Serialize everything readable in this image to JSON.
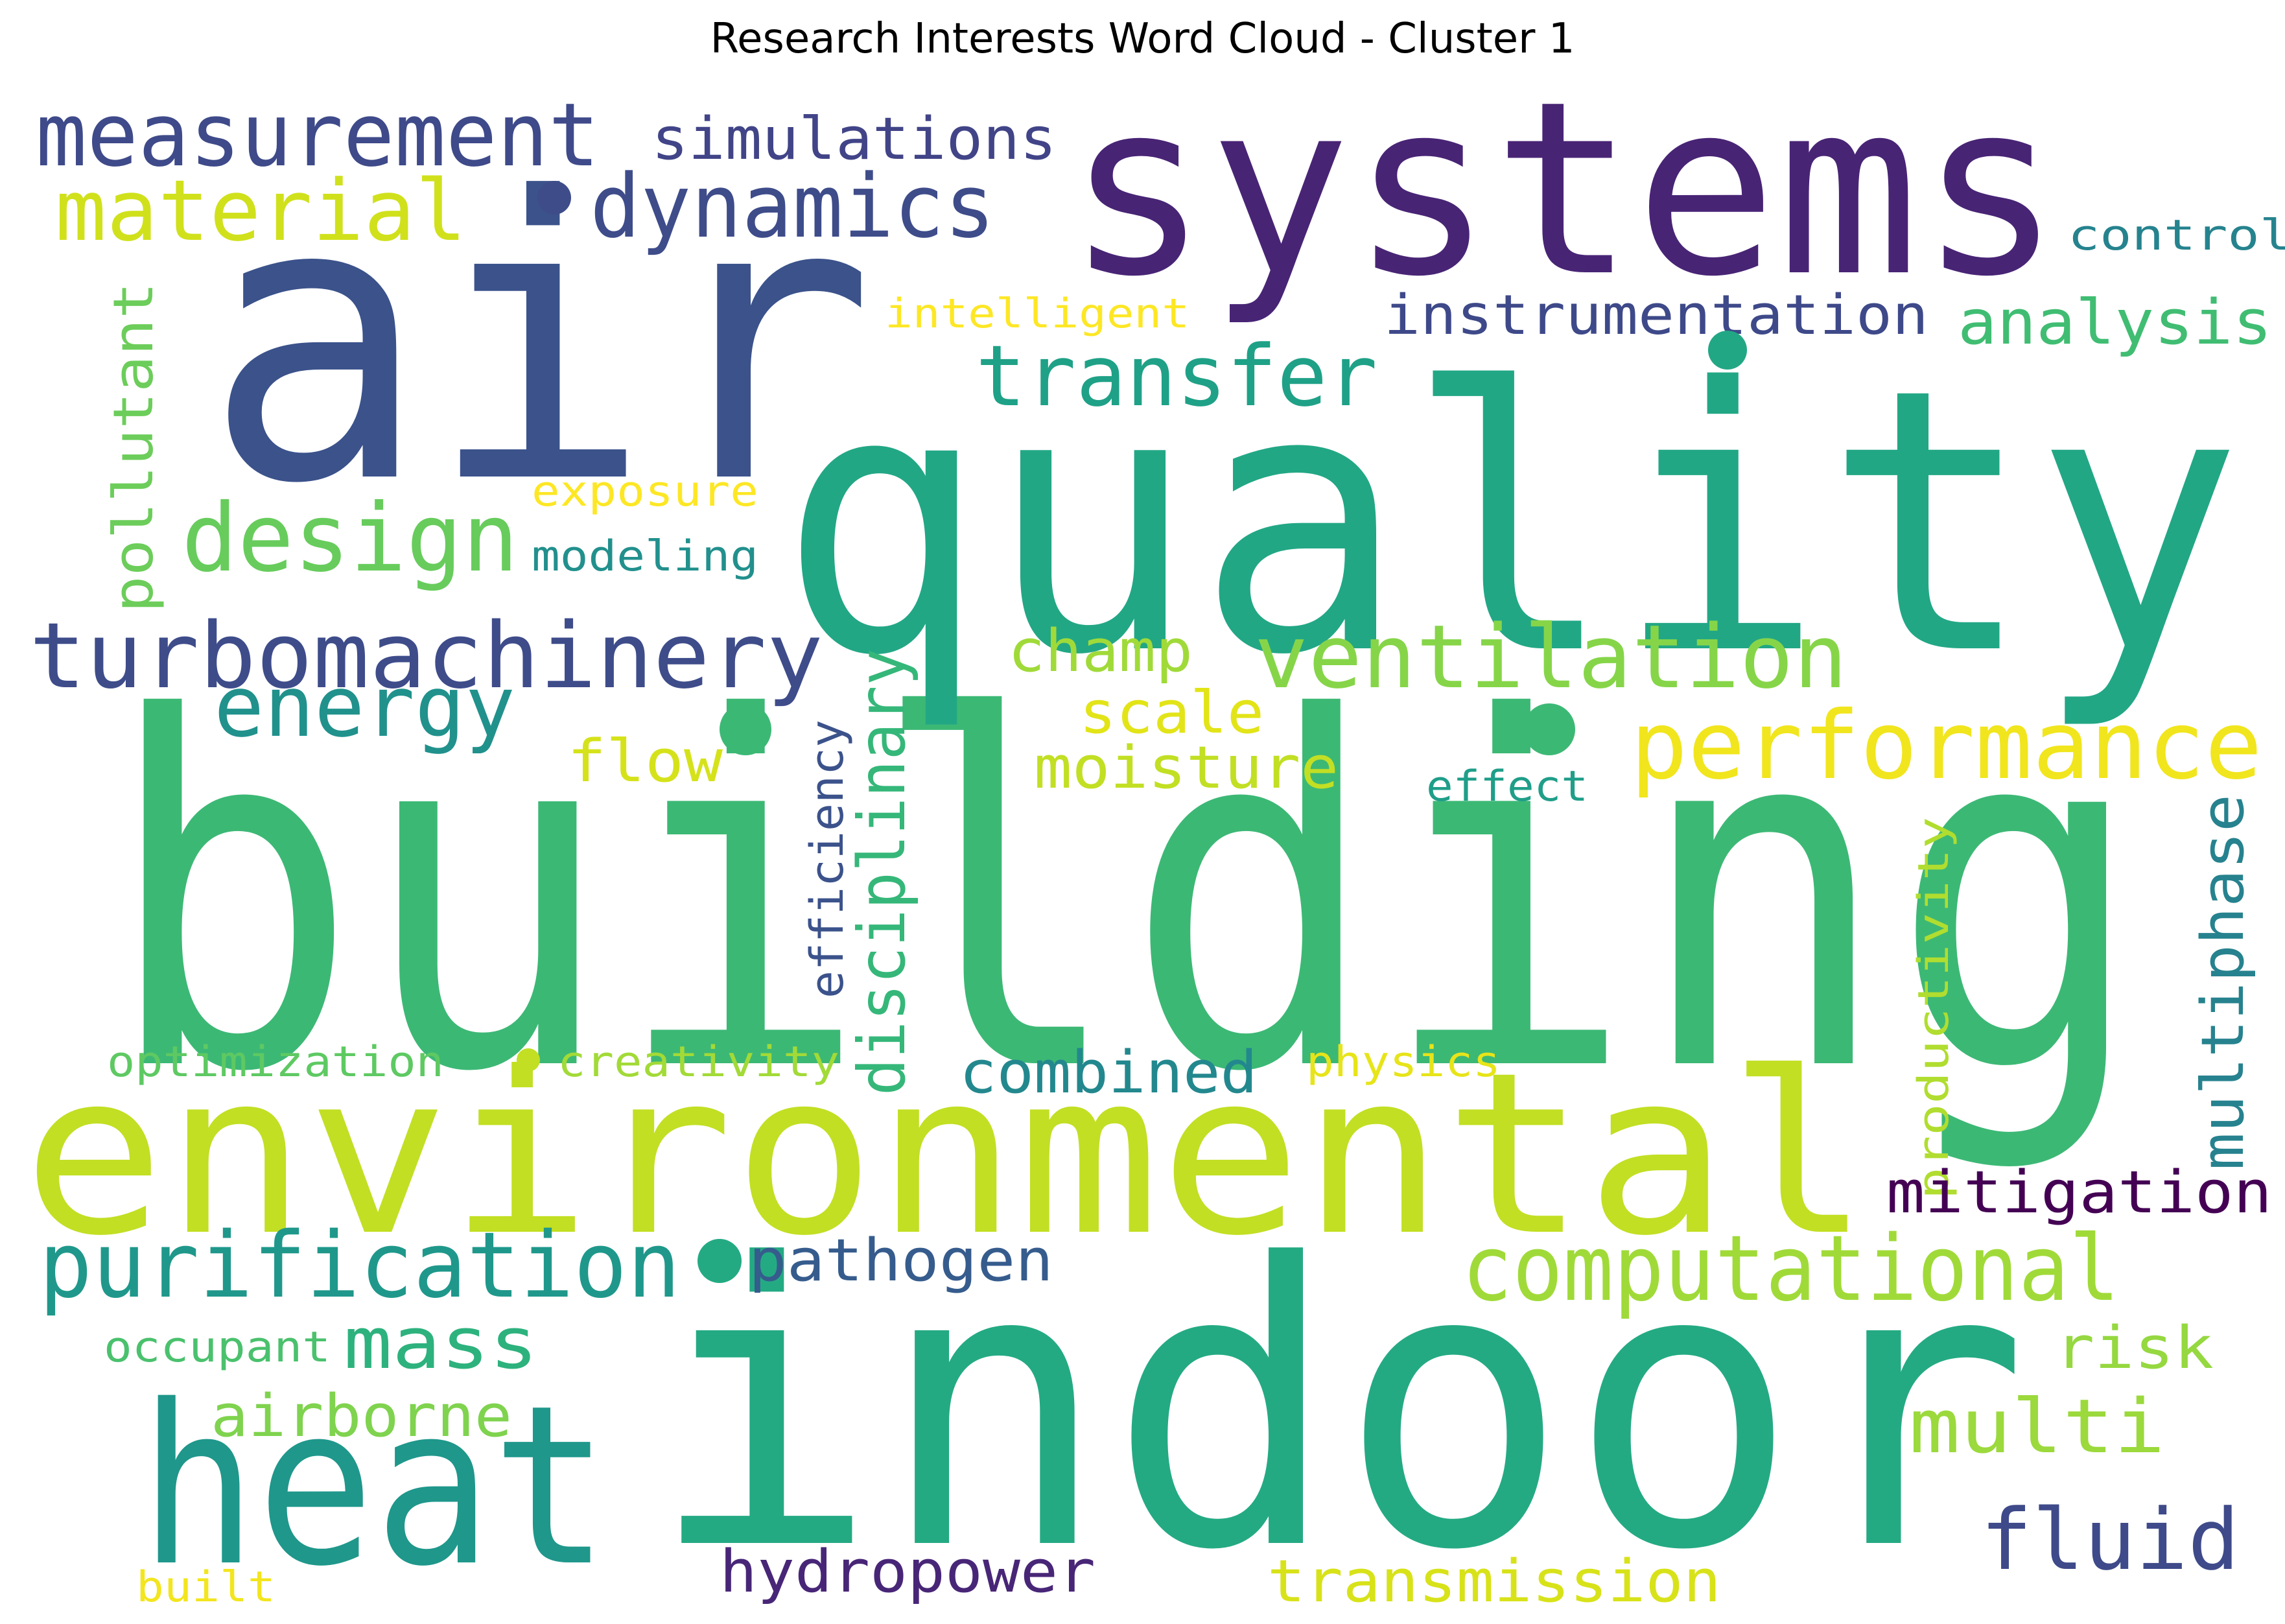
{
  "title": "Research Interests Word Cloud - Cluster 1",
  "colors": {
    "background": "#ffffff",
    "title": "#000000"
  },
  "words": [
    {
      "id": "building",
      "text": "building",
      "color": "#3cb875"
    },
    {
      "id": "indoor",
      "text": "indoor",
      "color": "#24aa83"
    },
    {
      "id": "air",
      "text": "air",
      "color": "#3b528b"
    },
    {
      "id": "quality",
      "text": "quality",
      "color": "#22a785"
    },
    {
      "id": "systems",
      "text": "systems",
      "color": "#482475"
    },
    {
      "id": "environmental",
      "text": "environmental",
      "color": "#c2df23"
    },
    {
      "id": "heat",
      "text": "heat",
      "color": "#1f978b"
    },
    {
      "id": "measurement",
      "text": "measurement",
      "color": "#3e4a89"
    },
    {
      "id": "dynamics",
      "text": "dynamics",
      "color": "#3e4c8a"
    },
    {
      "id": "simulations",
      "text": "simulations",
      "color": "#414487"
    },
    {
      "id": "material",
      "text": "material",
      "color": "#d0e11c"
    },
    {
      "id": "control",
      "text": "control",
      "color": "#25838e"
    },
    {
      "id": "intelligent",
      "text": "intelligent",
      "color": "#fde725"
    },
    {
      "id": "instrumentation",
      "text": "instrumentation",
      "color": "#3e4989"
    },
    {
      "id": "analysis",
      "text": "analysis",
      "color": "#40bd72"
    },
    {
      "id": "transfer",
      "text": "transfer",
      "color": "#1fa187"
    },
    {
      "id": "pollutant",
      "text": "pollutant",
      "color": "#6ccd5a"
    },
    {
      "id": "exposure",
      "text": "exposure",
      "color": "#fde725"
    },
    {
      "id": "design",
      "text": "design",
      "color": "#67cc5c"
    },
    {
      "id": "modeling",
      "text": "modeling",
      "color": "#22908d"
    },
    {
      "id": "turbomachinery",
      "text": "turbomachinery",
      "color": "#3e4c8a"
    },
    {
      "id": "ventilation",
      "text": "ventilation",
      "color": "#86d549"
    },
    {
      "id": "champ",
      "text": "champ",
      "color": "#a0da39"
    },
    {
      "id": "energy",
      "text": "energy",
      "color": "#21918c"
    },
    {
      "id": "performance",
      "text": "performance",
      "color": "#f1e51d"
    },
    {
      "id": "scale",
      "text": "scale",
      "color": "#e2e418"
    },
    {
      "id": "flow",
      "text": "flow",
      "color": "#d5e21a"
    },
    {
      "id": "moisture",
      "text": "moisture",
      "color": "#c2df23"
    },
    {
      "id": "effect",
      "text": "effect",
      "color": "#1f9e89"
    },
    {
      "id": "disciplinary",
      "text": "disciplinary",
      "color": "#35b779"
    },
    {
      "id": "efficiency",
      "text": "efficiency",
      "color": "#3b528b"
    },
    {
      "id": "multiphase",
      "text": "multiphase",
      "color": "#26828e"
    },
    {
      "id": "productivity",
      "text": "productivity",
      "color": "#b0dd2f"
    },
    {
      "id": "optimization",
      "text": "optimization",
      "color": "#5ec962"
    },
    {
      "id": "creativity",
      "text": "creativity",
      "color": "#a2da37"
    },
    {
      "id": "physics",
      "text": "physics",
      "color": "#e7e419"
    },
    {
      "id": "combined",
      "text": "combined",
      "color": "#23888e"
    },
    {
      "id": "mitigation",
      "text": "mitigation",
      "color": "#440154"
    },
    {
      "id": "purification",
      "text": "purification",
      "color": "#1f988b"
    },
    {
      "id": "pathogen",
      "text": "pathogen",
      "color": "#365c8d"
    },
    {
      "id": "computational",
      "text": "computational",
      "color": "#a0da39"
    },
    {
      "id": "occupant",
      "text": "occupant",
      "color": "#4ac16d"
    },
    {
      "id": "mass",
      "text": "mass",
      "color": "#2db27d"
    },
    {
      "id": "risk",
      "text": "risk",
      "color": "#95d840"
    },
    {
      "id": "airborne",
      "text": "airborne",
      "color": "#7fd34e"
    },
    {
      "id": "multi",
      "text": "multi",
      "color": "#9bd93c"
    },
    {
      "id": "fluid",
      "text": "fluid",
      "color": "#3e4a89"
    },
    {
      "id": "built",
      "text": "built",
      "color": "#f3e51e"
    },
    {
      "id": "hydropower",
      "text": "hydropower",
      "color": "#482677"
    },
    {
      "id": "transmission",
      "text": "transmission",
      "color": "#d8e219"
    }
  ]
}
